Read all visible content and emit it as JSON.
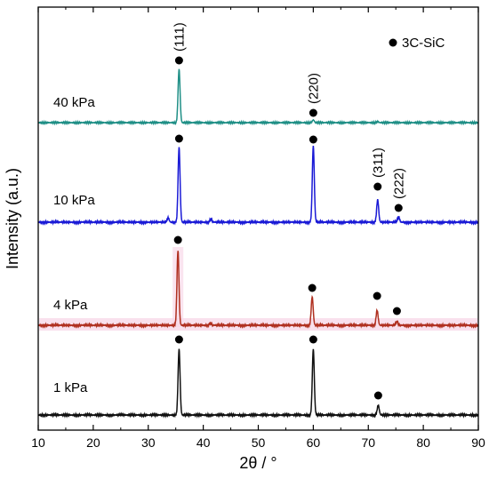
{
  "chart_data": {
    "type": "line",
    "xlabel": "2θ / °",
    "ylabel": "Intensity (a.u.)",
    "xlim": [
      10,
      90
    ],
    "x_ticks": [
      10,
      20,
      30,
      40,
      50,
      60,
      70,
      80,
      90
    ],
    "y_ticks_shown": false,
    "legend": {
      "marker": "filled-circle",
      "label": "3C-SiC",
      "placement": "top-right"
    },
    "series": [
      {
        "name": "40 kPa",
        "color": "#1f8f86",
        "peaks": [
          {
            "x": 35.6,
            "relative_height": 1.0
          },
          {
            "x": 60.0,
            "relative_height": 0.05
          },
          {
            "x": 71.7,
            "relative_height": 0.02
          }
        ],
        "markers": [
          {
            "x": 35.6,
            "label": "(111)"
          },
          {
            "x": 60.0,
            "label": "(220)"
          }
        ]
      },
      {
        "name": "10 kPa",
        "color": "#1a1ad6",
        "peaks": [
          {
            "x": 33.6,
            "relative_height": 0.06
          },
          {
            "x": 35.6,
            "relative_height": 1.0
          },
          {
            "x": 41.4,
            "relative_height": 0.04
          },
          {
            "x": 60.0,
            "relative_height": 1.02
          },
          {
            "x": 71.7,
            "relative_height": 0.3
          },
          {
            "x": 75.5,
            "relative_height": 0.07
          }
        ],
        "markers": [
          {
            "x": 35.6,
            "label": ""
          },
          {
            "x": 60.0,
            "label": ""
          },
          {
            "x": 71.7,
            "label": "(311)"
          },
          {
            "x": 75.5,
            "label": "(222)"
          }
        ]
      },
      {
        "name": "4 kPa",
        "color": "#b03020",
        "peaks": [
          {
            "x": 35.4,
            "relative_height": 1.0
          },
          {
            "x": 41.3,
            "relative_height": 0.03
          },
          {
            "x": 59.8,
            "relative_height": 0.38
          },
          {
            "x": 71.6,
            "relative_height": 0.2
          },
          {
            "x": 75.2,
            "relative_height": 0.05
          }
        ],
        "markers": [
          {
            "x": 35.4,
            "label": ""
          },
          {
            "x": 59.8,
            "label": ""
          },
          {
            "x": 71.6,
            "label": ""
          },
          {
            "x": 75.2,
            "label": ""
          }
        ]
      },
      {
        "name": "1 kPa",
        "color": "#111111",
        "peaks": [
          {
            "x": 35.6,
            "relative_height": 1.0
          },
          {
            "x": 60.0,
            "relative_height": 1.0
          },
          {
            "x": 71.8,
            "relative_height": 0.15
          }
        ],
        "markers": [
          {
            "x": 35.6,
            "label": ""
          },
          {
            "x": 60.0,
            "label": ""
          },
          {
            "x": 71.8,
            "label": ""
          }
        ]
      }
    ]
  }
}
